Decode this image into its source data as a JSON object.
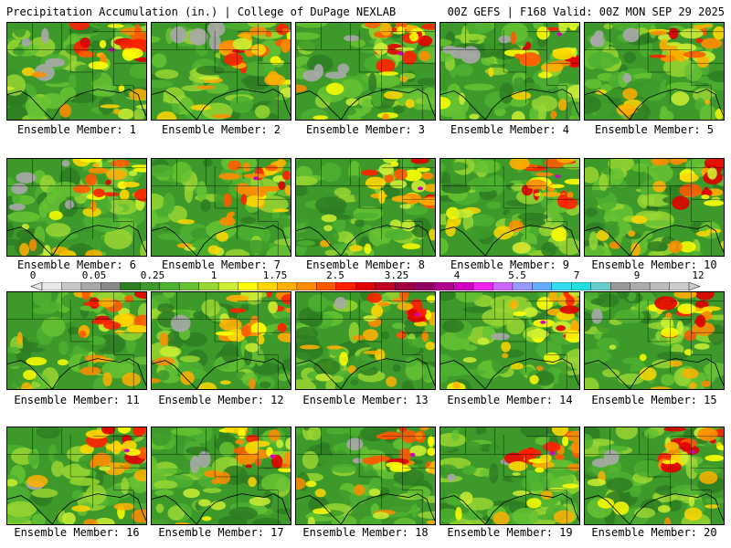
{
  "header": {
    "title": "Precipitation Accumulation (in.) | College of DuPage NEXLAB",
    "run_info": "00Z GEFS | F168 Valid: 00Z MON SEP 29 2025"
  },
  "panels": [
    {
      "label": "Ensemble Member: 1"
    },
    {
      "label": "Ensemble Member: 2"
    },
    {
      "label": "Ensemble Member: 3"
    },
    {
      "label": "Ensemble Member: 4"
    },
    {
      "label": "Ensemble Member: 5"
    },
    {
      "label": "Ensemble Member: 6"
    },
    {
      "label": "Ensemble Member: 7"
    },
    {
      "label": "Ensemble Member: 8"
    },
    {
      "label": "Ensemble Member: 9"
    },
    {
      "label": "Ensemble Member: 10"
    },
    {
      "label": "Ensemble Member: 11"
    },
    {
      "label": "Ensemble Member: 12"
    },
    {
      "label": "Ensemble Member: 13"
    },
    {
      "label": "Ensemble Member: 14"
    },
    {
      "label": "Ensemble Member: 15"
    },
    {
      "label": "Ensemble Member: 16"
    },
    {
      "label": "Ensemble Member: 17"
    },
    {
      "label": "Ensemble Member: 18"
    },
    {
      "label": "Ensemble Member: 19"
    },
    {
      "label": "Ensemble Member: 20"
    }
  ],
  "colorbar": {
    "ticks": [
      "0",
      "0.05",
      "0.25",
      "1",
      "1.75",
      "2.5",
      "3.25",
      "4",
      "5.5",
      "7",
      "9",
      "12"
    ],
    "colors": [
      "#e8e8e8",
      "#c8c8c8",
      "#a8a8a8",
      "#888888",
      "#2e7d22",
      "#3d9a2a",
      "#4cb030",
      "#66c233",
      "#99d633",
      "#ccee33",
      "#ffff00",
      "#ffd700",
      "#ffb000",
      "#ff8c00",
      "#ff5a00",
      "#ff2000",
      "#e00000",
      "#c00020",
      "#a00040",
      "#900060",
      "#b00090",
      "#d000c0",
      "#ee22ee",
      "#cc66ff",
      "#9999ff",
      "#66aaff",
      "#33ddee",
      "#22dddd",
      "#66cccc",
      "#999999",
      "#aaaaaa",
      "#bbbbbb",
      "#cccccc"
    ],
    "color_levels": [
      0,
      0.05,
      0.25,
      1,
      1.75,
      2.5,
      3.25,
      4,
      5.5,
      7,
      9,
      12
    ]
  }
}
